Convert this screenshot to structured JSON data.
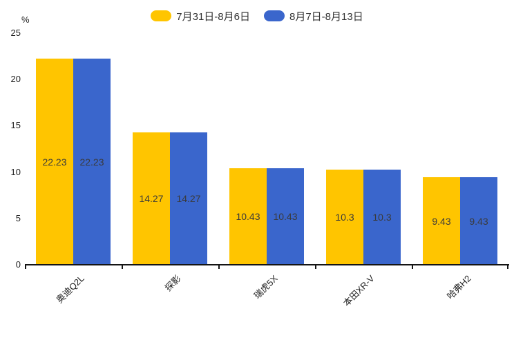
{
  "chart_data": {
    "type": "bar",
    "title": "",
    "categories": [
      "奥迪Q2L",
      "探影",
      "瑞虎5X",
      "本田XR-V",
      "哈弗H2"
    ],
    "series": [
      {
        "name": "7月31日-8月6日",
        "color": "#FFC500",
        "values": [
          22.23,
          14.27,
          10.43,
          10.3,
          9.43
        ]
      },
      {
        "name": "8月7日-8月13日",
        "color": "#3A66CC",
        "values": [
          22.23,
          14.27,
          10.43,
          10.3,
          9.43
        ]
      }
    ],
    "value_labels": [
      [
        "22.23",
        "14.27",
        "10.43",
        "10.3",
        "9.43"
      ],
      [
        "22.23",
        "14.27",
        "10.43",
        "10.3",
        "9.43"
      ]
    ],
    "xlabel": "",
    "ylabel": "%",
    "ylim": [
      0,
      25
    ],
    "yticks": [
      0,
      5,
      10,
      15,
      20,
      25
    ],
    "grid": false,
    "legend_position": "top",
    "value_label_color": "#3a3a3a",
    "axis_color": "#141414"
  }
}
